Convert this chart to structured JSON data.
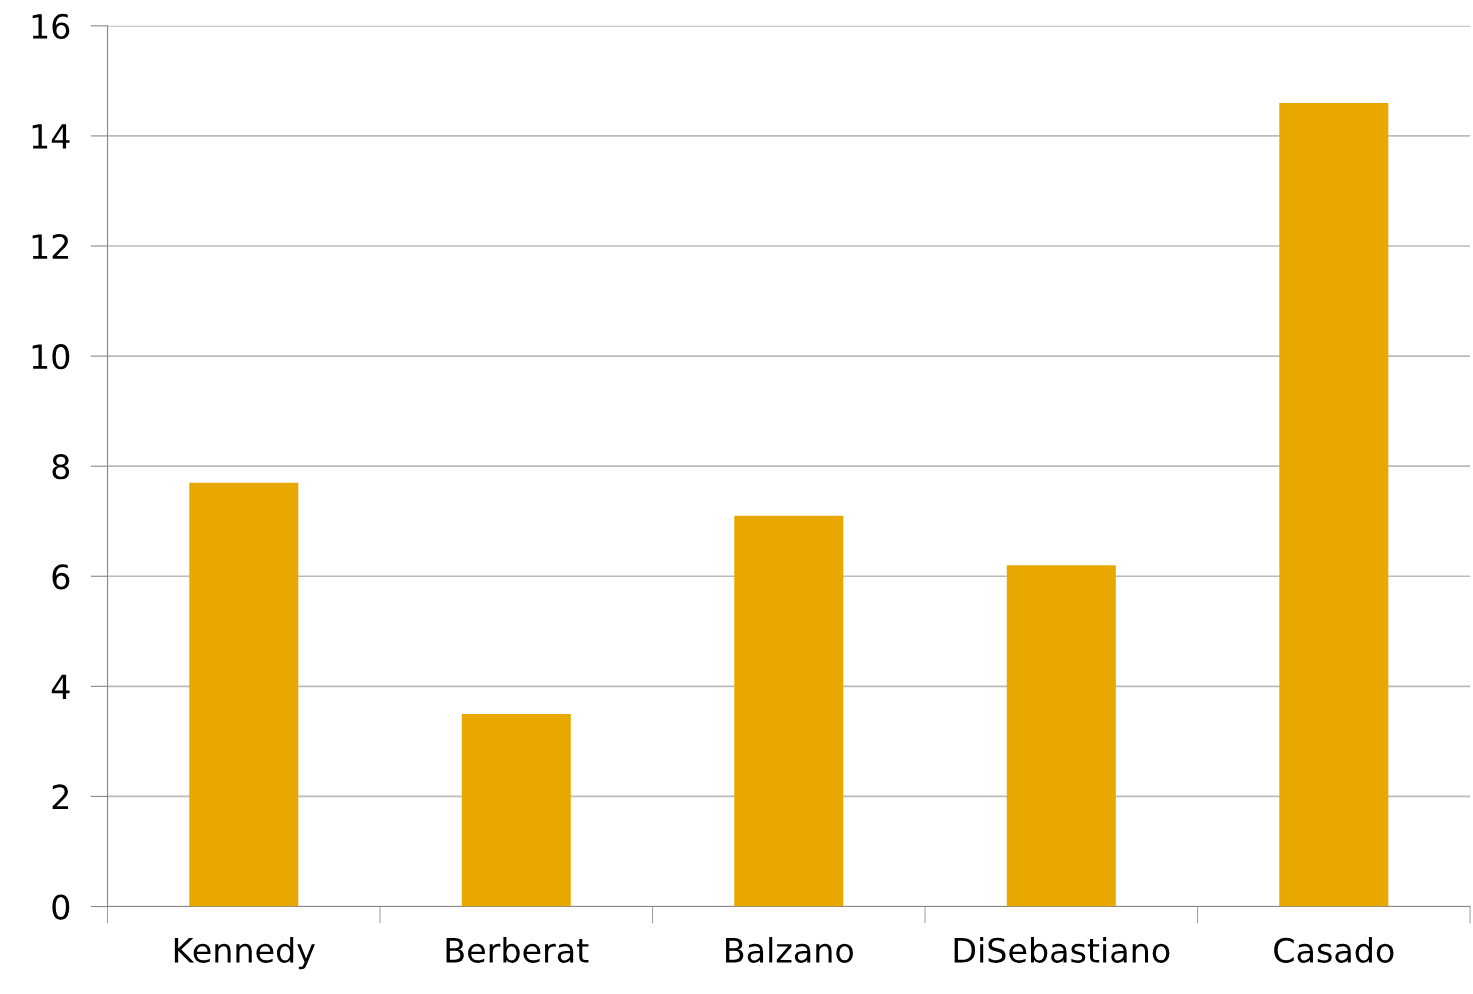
{
  "chart_data": {
    "type": "bar",
    "categories": [
      "Kennedy",
      "Berberat",
      "Balzano",
      "DiSebastiano",
      "Casado"
    ],
    "values": [
      7.7,
      3.5,
      7.1,
      6.2,
      14.6
    ],
    "color": "#e9a800",
    "ylim": [
      0,
      16
    ],
    "yticks": [
      0,
      2,
      4,
      6,
      8,
      10,
      12,
      14,
      16
    ],
    "grid": "y"
  }
}
